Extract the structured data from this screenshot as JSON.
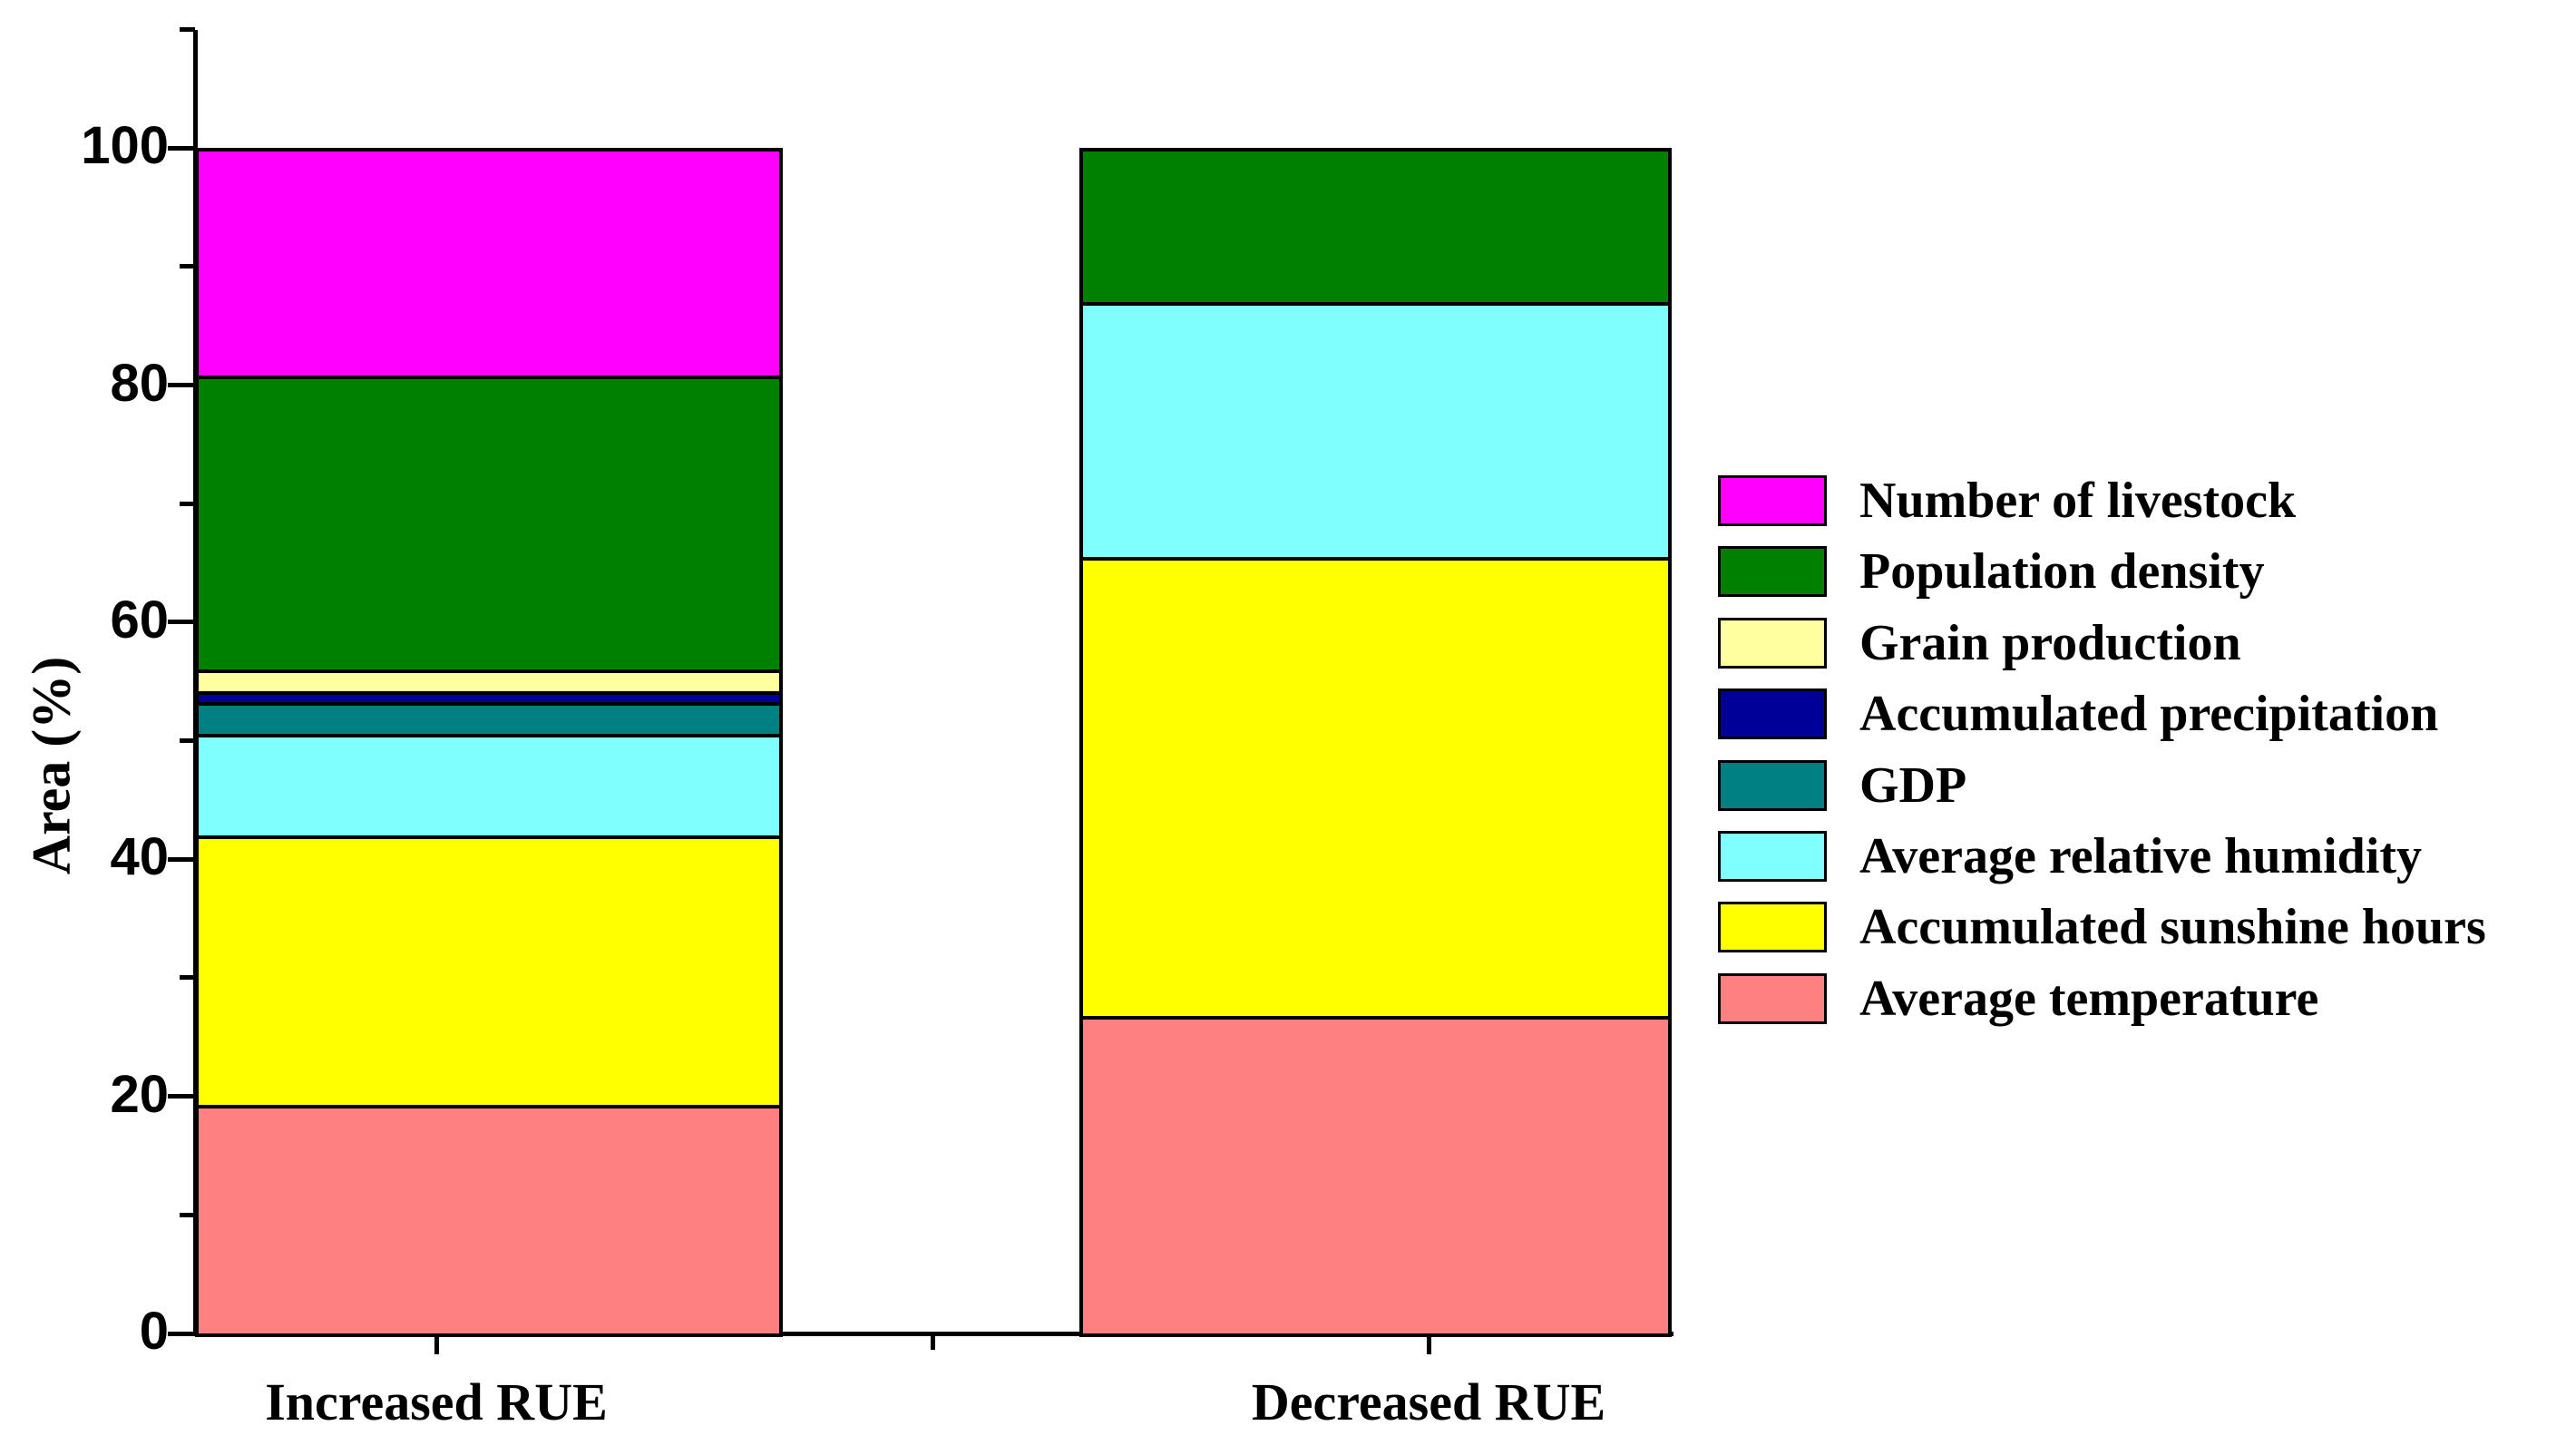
{
  "figure": {
    "background": "#FFFFFF",
    "axis_color": "#000000"
  },
  "chart_data": {
    "type": "bar",
    "stacked": true,
    "title": "",
    "xlabel": "",
    "ylabel": "Area (%)",
    "categories": [
      "Increased RUE",
      "Decreased RUE"
    ],
    "series": [
      {
        "name": "Number of livestock",
        "color": "#FF00FF",
        "values": [
          19.2,
          0
        ]
      },
      {
        "name": "Population density",
        "color": "#008000",
        "values": [
          24.8,
          13.0
        ]
      },
      {
        "name": "Grain production",
        "color": "#FFFFA0",
        "values": [
          1.8,
          0
        ]
      },
      {
        "name": "Accumulated precipitation",
        "color": "#000099",
        "values": [
          0.9,
          0
        ]
      },
      {
        "name": "GDP",
        "color": "#008080",
        "values": [
          2.7,
          0
        ]
      },
      {
        "name": "Average relative humidity",
        "color": "#80FFFF",
        "values": [
          8.6,
          21.5
        ]
      },
      {
        "name": "Accumulated sunshine hours",
        "color": "#FFFF00",
        "values": [
          22.7,
          38.7
        ]
      },
      {
        "name": "Average temperature",
        "color": "#FF8080",
        "values": [
          19.3,
          26.8
        ]
      }
    ],
    "series_order": "top-to-bottom-of-stack",
    "ylim": [
      0,
      110
    ],
    "yticks_major": [
      0,
      20,
      40,
      60,
      80,
      100
    ],
    "yticks_minor": [
      10,
      30,
      50,
      70,
      90,
      110
    ],
    "grid": false,
    "legend_position": "right"
  }
}
